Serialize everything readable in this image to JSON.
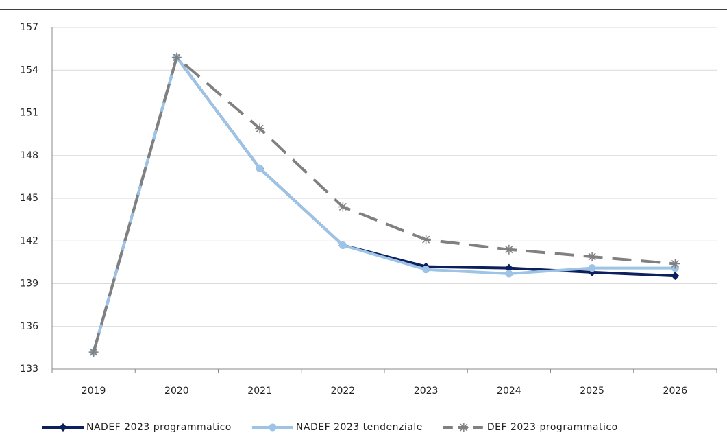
{
  "chart_data": {
    "type": "line",
    "categories": [
      "2019",
      "2020",
      "2021",
      "2022",
      "2023",
      "2024",
      "2025",
      "2026"
    ],
    "series": [
      {
        "name": "NADEF 2023 programmatico",
        "color": "#0d1f5c",
        "marker": "diamond",
        "dashed": false,
        "values": [
          134.2,
          154.9,
          147.1,
          141.7,
          140.2,
          140.1,
          139.8,
          139.55
        ]
      },
      {
        "name": "NADEF 2023 tendenziale",
        "color": "#9dc3e6",
        "marker": "circle",
        "dashed": false,
        "values": [
          134.2,
          154.9,
          147.1,
          141.7,
          140.0,
          139.7,
          140.1,
          140.1
        ]
      },
      {
        "name": "DEF 2023 programmatico",
        "color": "#808080",
        "marker": "star",
        "dashed": true,
        "values": [
          134.2,
          154.9,
          149.9,
          144.4,
          142.1,
          141.4,
          140.9,
          140.4
        ]
      }
    ],
    "ylim": [
      133,
      157
    ],
    "yticks": [
      133,
      136,
      139,
      142,
      145,
      148,
      151,
      154,
      157
    ],
    "grid": true,
    "legend": "bottom"
  }
}
